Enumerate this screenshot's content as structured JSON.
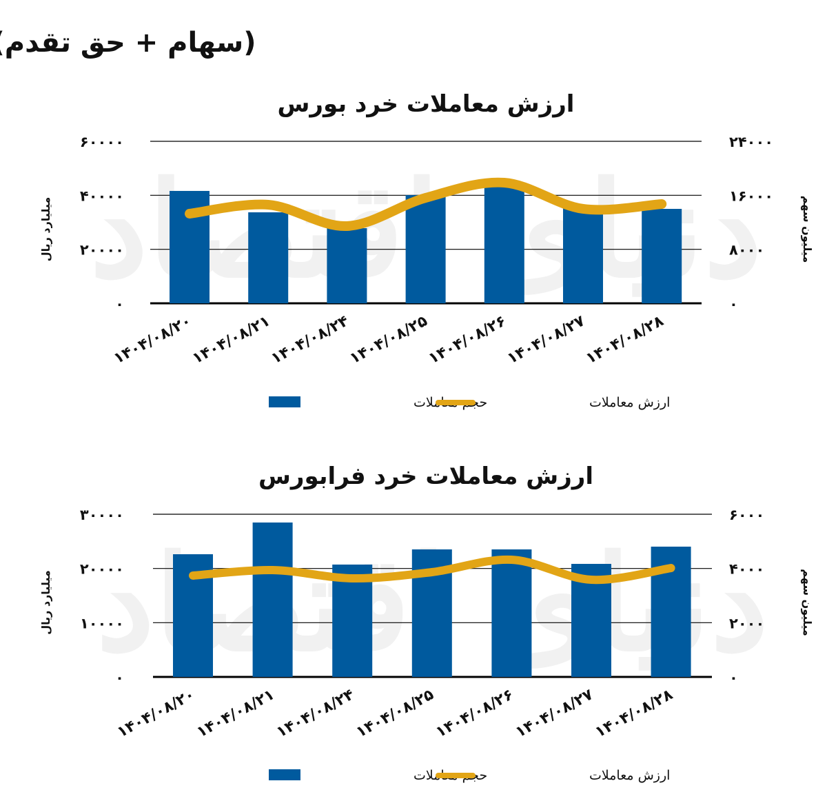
{
  "header": "(سهام + حق تقدم)",
  "watermark": "دنیای اقتصاد",
  "colors": {
    "bar": "#005a9e",
    "line": "#e2a516"
  },
  "chart_data": [
    {
      "type": "bar+line",
      "title": "ارزش معاملات خرد بورس",
      "categories": [
        "۱۴۰۴/۰۸/۲۰",
        "۱۴۰۴/۰۸/۲۱",
        "۱۴۰۴/۰۸/۲۴",
        "۱۴۰۴/۰۸/۲۵",
        "۱۴۰۴/۰۸/۲۶",
        "۱۴۰۴/۰۸/۲۷",
        "۱۴۰۴/۰۸/۲۸"
      ],
      "ylabel_left": "میلیارد ریال",
      "ylabel_right": "میلیون سهم",
      "ylim_left": [
        0,
        60000
      ],
      "ylim_right": [
        0,
        24000
      ],
      "yticks_left": [
        "۰",
        "۲۰۰۰۰",
        "۴۰۰۰۰",
        "۶۰۰۰۰"
      ],
      "yticks_right": [
        "۰",
        "۸۰۰۰",
        "۱۶۰۰۰",
        "۲۴۰۰۰"
      ],
      "grid": true,
      "legend": {
        "position": "bottom",
        "bar_label": "حجم معاملات",
        "line_label": "ارزش معاملات"
      },
      "series": [
        {
          "name": "حجم معاملات",
          "type": "bar",
          "axis": "right",
          "values": [
            16650,
            13480,
            11130,
            16030,
            17360,
            14090,
            13990
          ]
        },
        {
          "name": "ارزش معاملات",
          "type": "line",
          "axis": "left",
          "values": [
            33190,
            36510,
            28600,
            39060,
            44680,
            34980,
            36770
          ]
        }
      ]
    },
    {
      "type": "bar+line",
      "title": "ارزش معاملات خرد فرابورس",
      "categories": [
        "۱۴۰۴/۰۸/۲۰",
        "۱۴۰۴/۰۸/۲۱",
        "۱۴۰۴/۰۸/۲۴",
        "۱۴۰۴/۰۸/۲۵",
        "۱۴۰۴/۰۸/۲۶",
        "۱۴۰۴/۰۸/۲۷",
        "۱۴۰۴/۰۸/۲۸"
      ],
      "ylabel_left": "میلیارد ریال",
      "ylabel_right": "میلیون سهم",
      "ylim_left": [
        0,
        30000
      ],
      "ylim_right": [
        0,
        6000
      ],
      "yticks_left": [
        "۰",
        "۱۰۰۰۰",
        "۲۰۰۰۰",
        "۳۰۰۰۰"
      ],
      "yticks_right": [
        "۰",
        "۲۰۰۰",
        "۴۰۰۰",
        "۶۰۰۰"
      ],
      "grid": true,
      "legend": {
        "position": "bottom",
        "bar_label": "حجم معاملات",
        "line_label": "ارزش معاملات"
      },
      "series": [
        {
          "name": "حجم معاملات",
          "type": "bar",
          "axis": "right",
          "values": [
            4525,
            5695,
            4144,
            4703,
            4703,
            4169,
            4805
          ]
        },
        {
          "name": "ارزش معاملات",
          "type": "line",
          "axis": "left",
          "values": [
            18690,
            19700,
            18180,
            19320,
            21610,
            17920,
            20080
          ]
        }
      ]
    }
  ]
}
